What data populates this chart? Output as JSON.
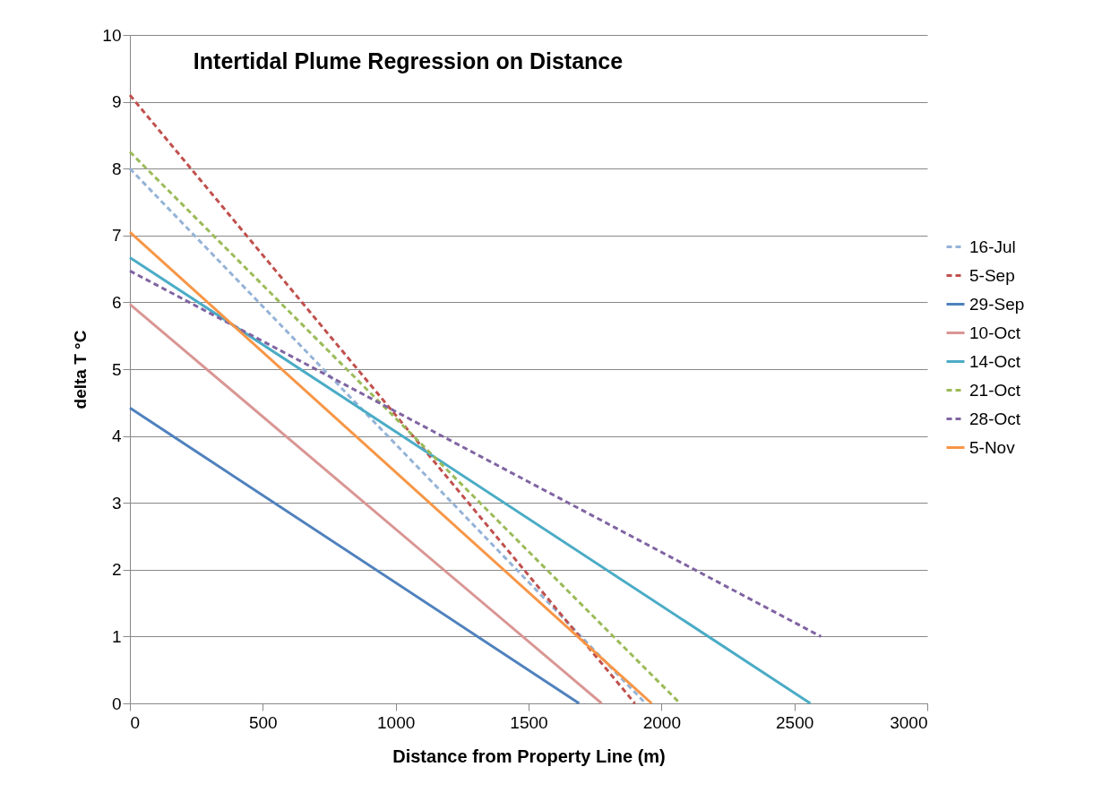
{
  "chart_data": {
    "type": "line",
    "title": "Intertidal Plume Regression on Distance",
    "xlabel": "Distance from Property Line (m)",
    "ylabel": "delta T °C",
    "xlim": [
      0,
      3000
    ],
    "xticks": [
      0,
      500,
      1000,
      1500,
      2000,
      2500,
      3000
    ],
    "ylim": [
      0,
      10
    ],
    "yticks": [
      0,
      1,
      2,
      3,
      4,
      5,
      6,
      7,
      8,
      9,
      10
    ],
    "grid": "y",
    "legend": "right",
    "marker": "none",
    "series": [
      {
        "name": "16-Jul",
        "color": "#95b3d7",
        "line_style": "dashed",
        "x": [
          0,
          1940
        ],
        "values": [
          8.0,
          0
        ]
      },
      {
        "name": "5-Sep",
        "color": "#c0504d",
        "line_style": "dashed",
        "x": [
          0,
          1900
        ],
        "values": [
          9.1,
          0
        ]
      },
      {
        "name": "29-Sep",
        "color": "#4f81bd",
        "line_style": "solid",
        "x": [
          0,
          1690
        ],
        "values": [
          4.42,
          0
        ]
      },
      {
        "name": "10-Oct",
        "color": "#d99694",
        "line_style": "solid",
        "x": [
          0,
          1775
        ],
        "values": [
          5.97,
          0
        ]
      },
      {
        "name": "14-Oct",
        "color": "#4bacc6",
        "line_style": "solid",
        "x": [
          0,
          2560
        ],
        "values": [
          6.67,
          0
        ]
      },
      {
        "name": "21-Oct",
        "color": "#9bbb59",
        "line_style": "dashed",
        "x": [
          0,
          2070
        ],
        "values": [
          8.25,
          0
        ]
      },
      {
        "name": "28-Oct",
        "color": "#8064a2",
        "line_style": "dashed",
        "x": [
          0,
          2600
        ],
        "values": [
          6.47,
          1.0
        ]
      },
      {
        "name": "5-Nov",
        "color": "#f79646",
        "line_style": "solid",
        "x": [
          0,
          1963
        ],
        "values": [
          7.05,
          0
        ]
      }
    ]
  }
}
